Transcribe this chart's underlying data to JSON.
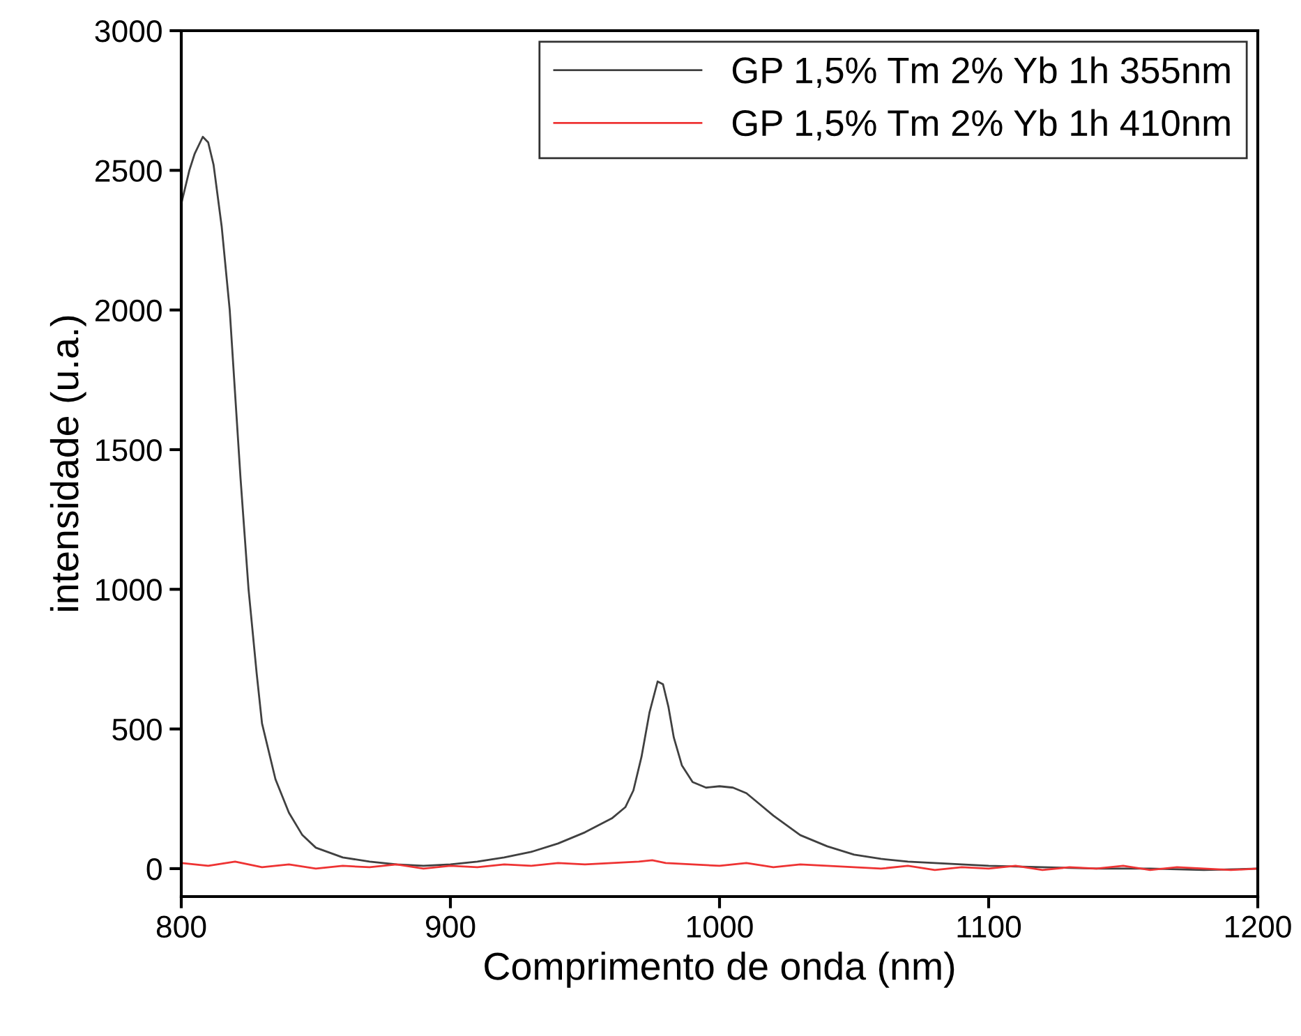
{
  "chart_data": {
    "type": "line",
    "xlabel": "Comprimento de onda (nm)",
    "ylabel": "intensidade (u.a.)",
    "xlim": [
      800,
      1200
    ],
    "ylim": [
      -100,
      3000
    ],
    "xticks": [
      800,
      900,
      1000,
      1100,
      1200
    ],
    "yticks": [
      0,
      500,
      1000,
      1500,
      2000,
      2500,
      3000
    ],
    "grid": false,
    "legend": "top right",
    "line_style": "solid",
    "marker": "none",
    "series": [
      {
        "name": "GP 1,5% Tm 2% Yb 1h 355nm",
        "color": "#404040",
        "x": [
          800,
          803,
          805,
          808,
          810,
          812,
          815,
          818,
          820,
          822,
          825,
          828,
          830,
          835,
          840,
          845,
          850,
          860,
          870,
          880,
          890,
          900,
          910,
          920,
          930,
          940,
          950,
          960,
          965,
          968,
          971,
          974,
          977,
          979,
          981,
          983,
          986,
          990,
          995,
          1000,
          1005,
          1010,
          1015,
          1020,
          1030,
          1040,
          1050,
          1060,
          1070,
          1080,
          1100,
          1120,
          1140,
          1160,
          1180,
          1200
        ],
        "values": [
          2380,
          2500,
          2560,
          2620,
          2600,
          2520,
          2300,
          2000,
          1700,
          1400,
          1000,
          700,
          520,
          320,
          200,
          120,
          75,
          40,
          25,
          15,
          10,
          15,
          25,
          40,
          60,
          90,
          130,
          180,
          220,
          280,
          400,
          560,
          670,
          660,
          580,
          470,
          370,
          310,
          290,
          295,
          290,
          270,
          230,
          190,
          120,
          80,
          50,
          35,
          25,
          20,
          10,
          5,
          0,
          0,
          -5,
          0
        ]
      },
      {
        "name": "GP 1,5% Tm 2% Yb 1h 410nm",
        "color": "#ee3333",
        "x": [
          800,
          810,
          820,
          830,
          840,
          850,
          860,
          870,
          880,
          890,
          900,
          910,
          920,
          930,
          940,
          950,
          960,
          970,
          975,
          980,
          990,
          1000,
          1010,
          1020,
          1030,
          1040,
          1050,
          1060,
          1070,
          1080,
          1090,
          1100,
          1110,
          1120,
          1130,
          1140,
          1150,
          1160,
          1170,
          1180,
          1190,
          1200
        ],
        "values": [
          20,
          10,
          25,
          5,
          15,
          0,
          10,
          5,
          15,
          0,
          10,
          5,
          15,
          10,
          20,
          15,
          20,
          25,
          30,
          20,
          15,
          10,
          20,
          5,
          15,
          10,
          5,
          0,
          10,
          -5,
          5,
          0,
          10,
          -5,
          5,
          0,
          10,
          -5,
          5,
          0,
          -5,
          0
        ]
      }
    ]
  }
}
